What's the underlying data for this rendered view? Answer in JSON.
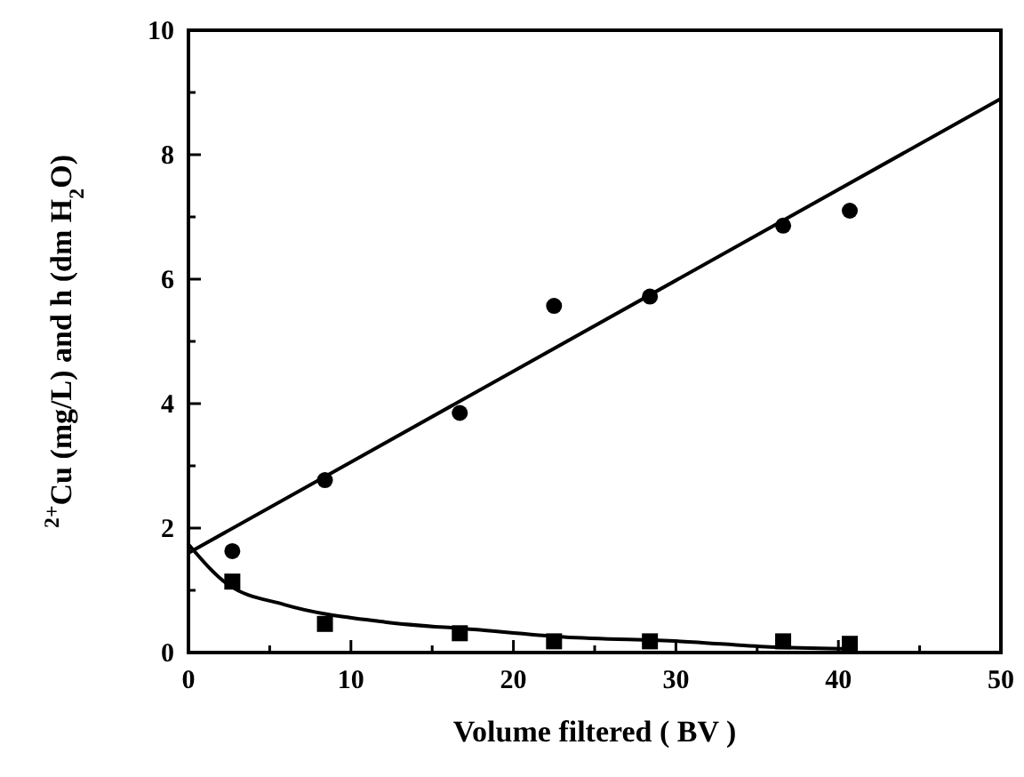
{
  "chart_data": {
    "type": "scatter",
    "xlabel": "Volume filtered ( BV )",
    "ylabel": "$^{2+}$Cu  (mg/L)  and  h (dm H$_{2}$O)",
    "xlim": [
      0,
      50
    ],
    "ylim": [
      0,
      10
    ],
    "xticks": [
      0,
      {
        "value": 5,
        "label": null
      },
      10,
      {
        "value": 15,
        "label": null
      },
      20,
      {
        "value": 25,
        "label": null
      },
      30,
      {
        "value": 35,
        "label": null
      },
      40,
      {
        "value": 45,
        "label": null
      },
      50
    ],
    "yticks": [
      0,
      {
        "value": 1,
        "label": null
      },
      2,
      {
        "value": 3,
        "label": null
      },
      4,
      {
        "value": 5,
        "label": null
      },
      6,
      {
        "value": 7,
        "label": null
      },
      8,
      {
        "value": 9,
        "label": null
      },
      10
    ],
    "grid": false,
    "series": [
      {
        "marker": "circle",
        "color": "#000000",
        "x": [
          2.7,
          8.4,
          16.7,
          22.5,
          28.4,
          36.6,
          40.7
        ],
        "values": [
          1.63,
          2.77,
          3.85,
          5.57,
          5.72,
          6.86,
          7.1
        ]
      },
      {
        "marker": "square",
        "color": "#000000",
        "x": [
          2.7,
          8.4,
          16.7,
          22.5,
          28.4,
          36.6,
          40.7
        ],
        "values": [
          1.14,
          0.46,
          0.31,
          0.18,
          0.18,
          0.18,
          0.14
        ]
      },
      {
        "type": "line",
        "marker": "none",
        "line_style": "solid",
        "color": "#000000",
        "x": [
          0,
          50
        ],
        "values": [
          1.6,
          8.9
        ]
      },
      {
        "type": "line",
        "marker": "none",
        "line_style": "solid",
        "color": "#000000",
        "x": [
          0,
          2.4,
          5.9,
          12.1,
          17.6,
          23.1,
          30.3,
          35.8,
          40.2
        ],
        "values": [
          1.74,
          1.1,
          0.77,
          0.49,
          0.37,
          0.25,
          0.18,
          0.09,
          0.06
        ]
      }
    ]
  }
}
